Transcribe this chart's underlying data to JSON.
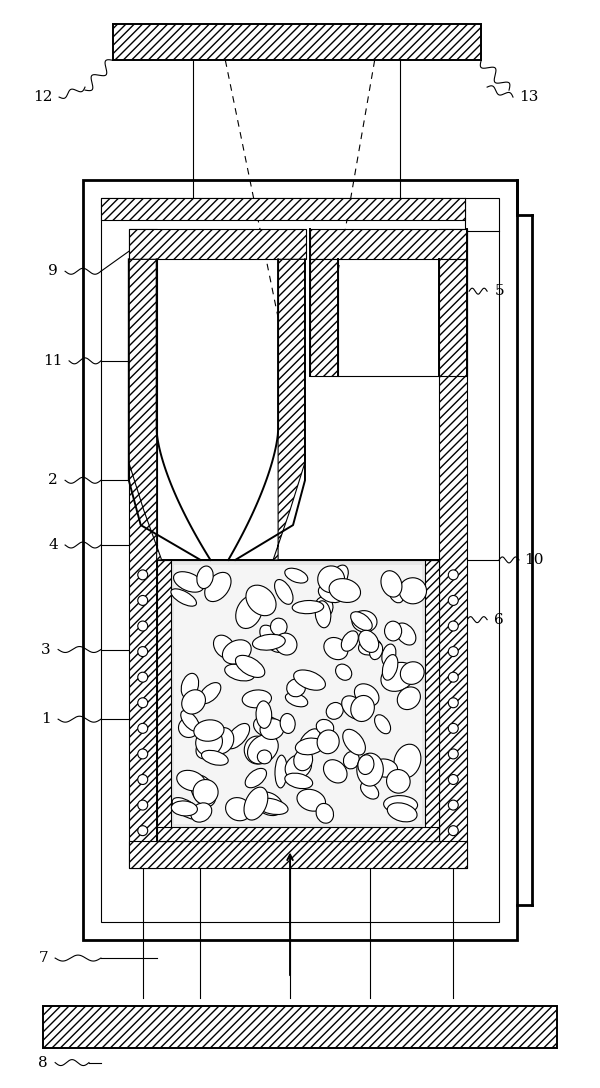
{
  "bg_color": "#ffffff",
  "line_color": "#000000",
  "fig_width": 6.0,
  "fig_height": 10.88,
  "dpi": 100
}
